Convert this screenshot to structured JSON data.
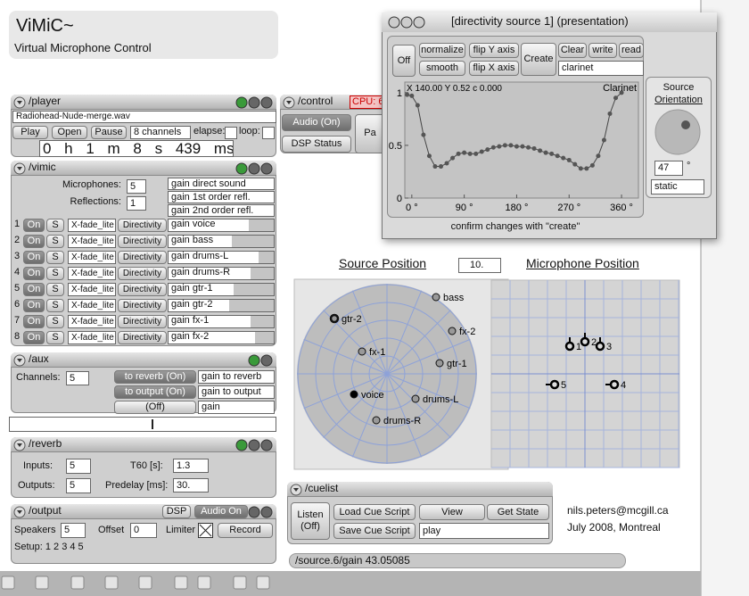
{
  "app": {
    "title": "ViMiC~",
    "subtitle": "Virtual Microphone Control"
  },
  "player": {
    "header": "/player",
    "file": "Radiohead-Nude-merge.wav",
    "play": "Play",
    "open": "Open",
    "pause": "Pause",
    "channels": "8 channels",
    "elapse": "elapse:",
    "loop": "loop:",
    "time": "0 h 1 m 8 s 439 ms"
  },
  "control": {
    "header": "/control",
    "cpu": "CPU: 6",
    "audio": "Audio (On)",
    "dsp": "DSP Status",
    "pan": "Pa"
  },
  "vimic": {
    "header": "/vimic",
    "microphones_label": "Microphones:",
    "microphones": 5,
    "reflections_label": "Reflections:",
    "reflections": 1,
    "gains": [
      "gain direct sound",
      "gain 1st order refl.",
      "gain 2nd order refl."
    ],
    "rows": [
      {
        "num": "1",
        "on": "On",
        "solo": "S",
        "xfade": "X-fade_lite",
        "directivity": "Directivity",
        "gain": "gain voice",
        "level": 0.76
      },
      {
        "num": "2",
        "on": "On",
        "solo": "S",
        "xfade": "X-fade_lite",
        "directivity": "Directivity",
        "gain": "gain bass",
        "level": 0.6
      },
      {
        "num": "3",
        "on": "On",
        "solo": "S",
        "xfade": "X-fade_lite",
        "directivity": "Directivity",
        "gain": "gain drums-L",
        "level": 0.86
      },
      {
        "num": "4",
        "on": "On",
        "solo": "S",
        "xfade": "X-fade_lite",
        "directivity": "Directivity",
        "gain": "gain drums-R",
        "level": 0.78
      },
      {
        "num": "5",
        "on": "On",
        "solo": "S",
        "xfade": "X-fade_lite",
        "directivity": "Directivity",
        "gain": "gain gtr-1",
        "level": 0.62
      },
      {
        "num": "6",
        "on": "On",
        "solo": "S",
        "xfade": "X-fade_lite",
        "directivity": "Directivity",
        "gain": "gain gtr-2",
        "level": 0.58
      },
      {
        "num": "7",
        "on": "On",
        "solo": "S",
        "xfade": "X-fade_lite",
        "directivity": "Directivity",
        "gain": "gain fx-1",
        "level": 0.78
      },
      {
        "num": "8",
        "on": "On",
        "solo": "S",
        "xfade": "X-fade_lite",
        "directivity": "Directivity",
        "gain": "gain fx-2",
        "level": 0.82
      }
    ]
  },
  "aux": {
    "header": "/aux",
    "channels_label": "Channels:",
    "channels": 5,
    "sends": [
      {
        "button": "to reverb (On)",
        "gain": "gain to reverb"
      },
      {
        "button": "to output (On)",
        "gain": "gain to output"
      },
      {
        "button": "(Off)",
        "gain": "gain"
      }
    ]
  },
  "reverb": {
    "header": "/reverb",
    "inputs_label": "Inputs:",
    "inputs": 5,
    "outputs_label": "Outputs:",
    "outputs": 5,
    "t60_label": "T60 [s]:",
    "t60": "1.3",
    "predelay_label": "Predelay [ms]:",
    "predelay": "30."
  },
  "output": {
    "header": "/output",
    "dsp": "DSP",
    "audio": "Audio On",
    "speakers_label": "Speakers",
    "speakers": 5,
    "offset_label": "Offset",
    "offset": 0,
    "limiter": "Limiter",
    "record": "Record",
    "setup": "Setup: 1 2 3 4 5"
  },
  "directivity": {
    "title": "[directivity source 1] (presentation)",
    "off": "Off",
    "normalize": "normalize",
    "flip_y": "flip Y axis",
    "smooth": "smooth",
    "flip_x": "flip X axis",
    "create": "Create",
    "clear": "Clear",
    "write": "write",
    "read": "read",
    "preset": "clarinet",
    "readout": "X 140.00 Y 0.52 c 0.000",
    "curve_label": "Clarinet",
    "plot": {
      "x": [
        -8,
        0,
        10,
        20,
        30,
        40,
        50,
        60,
        70,
        80,
        90,
        100,
        110,
        120,
        130,
        140,
        150,
        160,
        170,
        180,
        190,
        200,
        210,
        220,
        230,
        240,
        250,
        260,
        270,
        280,
        290,
        300,
        310,
        320,
        330,
        340,
        350,
        360
      ],
      "y": [
        0.98,
        0.97,
        0.88,
        0.6,
        0.4,
        0.3,
        0.3,
        0.33,
        0.38,
        0.42,
        0.43,
        0.42,
        0.42,
        0.44,
        0.46,
        0.48,
        0.49,
        0.5,
        0.5,
        0.49,
        0.49,
        0.48,
        0.47,
        0.45,
        0.43,
        0.42,
        0.4,
        0.38,
        0.36,
        0.32,
        0.28,
        0.28,
        0.31,
        0.4,
        0.55,
        0.8,
        0.95,
        1.0
      ],
      "xlim": [
        -12,
        389
      ],
      "ylim": [
        0,
        1.1
      ],
      "xticks": [
        {
          "value": 0,
          "label": "0 °"
        },
        {
          "value": 90,
          "label": "90 °"
        },
        {
          "value": 180,
          "label": "180 °"
        },
        {
          "value": 270,
          "label": "270 °"
        },
        {
          "value": 360,
          "label": "360 °"
        }
      ],
      "yticks": [
        1,
        0.5,
        0
      ]
    },
    "confirm": "confirm changes with \"create\"",
    "orientation": {
      "title": "Source",
      "link": "Orientation",
      "angle": 47,
      "unit": "°",
      "mode": "static"
    }
  },
  "source_position": {
    "title": "Source Position",
    "zoom": "10.",
    "sources": [
      "bass",
      "gtr-2",
      "fx-2",
      "fx-1",
      "gtr-1",
      "voice",
      "drums-L",
      "drums-R"
    ]
  },
  "microphone_position": {
    "title": "Microphone Position",
    "mics": [
      "1",
      "2",
      "3",
      "4",
      "5"
    ]
  },
  "cuelist": {
    "header": "/cuelist",
    "listen": "Listen (Off)",
    "load": "Load Cue Script",
    "view": "View",
    "get_state": "Get State",
    "save": "Save Cue Script",
    "script": "play"
  },
  "credits": {
    "email": "nils.peters@mcgill.ca",
    "date": "July 2008, Montreal"
  },
  "status": "/source.6/gain 43.05085"
}
